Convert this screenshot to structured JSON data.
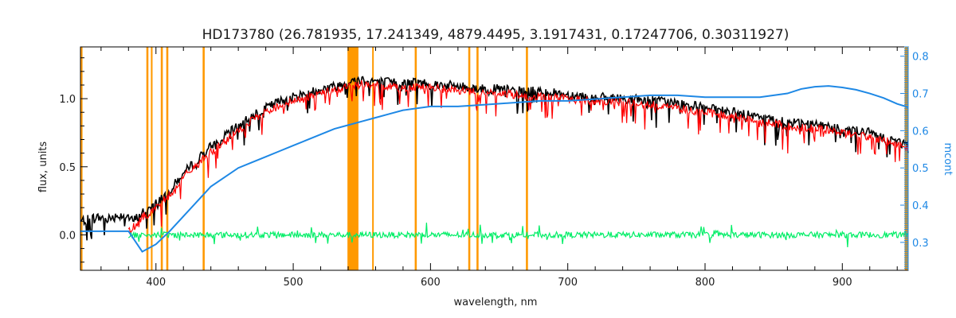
{
  "chart_data": {
    "type": "line",
    "title": "HD173780    (26.781935, 17.241349, 4879.4495, 3.1917431, 0.17247706, 0.30311927)",
    "xlabel": "wavelength, nm",
    "ylabel": "flux, units",
    "y2label": "mcont",
    "xlim": [
      345,
      948
    ],
    "ylim": [
      -0.26,
      1.38
    ],
    "y2lim": [
      0.225,
      0.825
    ],
    "x_ticks": [
      400,
      500,
      600,
      700,
      800,
      900
    ],
    "y_ticks": [
      0.0,
      0.5,
      1.0
    ],
    "y_tick_labels": [
      "0.0",
      "0.5",
      "1.0"
    ],
    "y2_ticks": [
      0.3,
      0.4,
      0.5,
      0.6,
      0.7,
      0.8
    ],
    "y2_tick_labels": [
      "0.3",
      "0.4",
      "0.5",
      "0.6",
      "0.7",
      "0.8"
    ],
    "grid": false,
    "colors": {
      "observed": "#000000",
      "model": "#ff0000",
      "residual": "#00ee66",
      "continuum": "#1e88e5",
      "mask": "#ff9900",
      "highlight": "#ffff00"
    },
    "masked_regions": [
      [
        345,
        346.5
      ],
      [
        393,
        394.5
      ],
      [
        396.3,
        397.5
      ],
      [
        403.5,
        405
      ],
      [
        407.5,
        409
      ],
      [
        434,
        435.5
      ],
      [
        539.5,
        547.5
      ],
      [
        557.5,
        558.5
      ],
      [
        588.5,
        590
      ],
      [
        627.5,
        629
      ],
      [
        633.5,
        635
      ],
      [
        669.5,
        671
      ],
      [
        945.5,
        948
      ]
    ],
    "series": [
      {
        "style": "observed",
        "x": [
          345,
          355,
          365,
          372,
          378,
          383,
          390,
          398,
          405,
          412,
          420,
          430,
          440,
          450,
          460,
          470,
          480,
          490,
          500,
          510,
          520,
          530,
          540,
          550,
          560,
          570,
          580,
          590,
          600,
          610,
          620,
          630,
          640,
          650,
          660,
          670,
          680,
          690,
          700,
          710,
          720,
          740,
          760,
          780,
          800,
          820,
          840,
          860,
          880,
          900,
          920,
          935,
          948
        ],
        "y": [
          0.1,
          0.13,
          0.12,
          0.14,
          0.15,
          0.1,
          0.16,
          0.22,
          0.28,
          0.35,
          0.45,
          0.55,
          0.65,
          0.72,
          0.8,
          0.88,
          0.93,
          0.98,
          1.01,
          1.04,
          1.07,
          1.09,
          1.12,
          1.14,
          1.13,
          1.12,
          1.11,
          1.12,
          1.11,
          1.1,
          1.09,
          1.08,
          1.07,
          1.07,
          1.06,
          1.05,
          1.06,
          1.04,
          1.03,
          1.02,
          1.01,
          1.0,
          0.99,
          0.97,
          0.93,
          0.9,
          0.86,
          0.83,
          0.81,
          0.78,
          0.75,
          0.7,
          0.66
        ]
      },
      {
        "style": "model",
        "x": [
          380,
          385,
          390,
          398,
          405,
          412,
          420,
          430,
          440,
          450,
          460,
          470,
          480,
          490,
          500,
          510,
          520,
          530,
          540,
          550,
          560,
          570,
          580,
          590,
          600,
          610,
          620,
          630,
          640,
          650,
          660,
          670,
          680,
          690,
          700,
          710,
          720,
          740,
          760,
          780,
          800,
          820,
          840,
          860,
          880,
          900,
          920,
          935,
          948
        ],
        "y": [
          0.03,
          0.07,
          0.13,
          0.18,
          0.25,
          0.32,
          0.42,
          0.52,
          0.61,
          0.68,
          0.76,
          0.84,
          0.9,
          0.95,
          0.98,
          1.01,
          1.04,
          1.06,
          1.09,
          1.11,
          1.1,
          1.09,
          1.08,
          1.09,
          1.08,
          1.07,
          1.06,
          1.05,
          1.04,
          1.04,
          1.03,
          1.02,
          1.02,
          1.01,
          1.0,
          0.99,
          0.98,
          0.97,
          0.96,
          0.93,
          0.9,
          0.87,
          0.83,
          0.8,
          0.78,
          0.75,
          0.72,
          0.68,
          0.64
        ]
      },
      {
        "style": "residual",
        "x": [
          380,
          948
        ],
        "y": [
          0.0,
          0.0
        ]
      },
      {
        "style": "continuum",
        "axis": "y2",
        "x": [
          345,
          380,
          390,
          400,
          410,
          420,
          430,
          440,
          450,
          460,
          470,
          480,
          490,
          500,
          510,
          520,
          530,
          540,
          550,
          560,
          570,
          580,
          590,
          600,
          620,
          640,
          660,
          680,
          700,
          720,
          740,
          760,
          780,
          800,
          820,
          840,
          860,
          870,
          880,
          890,
          900,
          910,
          920,
          930,
          940,
          948
        ],
        "y": [
          0.33,
          0.33,
          0.275,
          0.295,
          0.33,
          0.37,
          0.41,
          0.45,
          0.475,
          0.5,
          0.515,
          0.53,
          0.545,
          0.56,
          0.575,
          0.59,
          0.605,
          0.615,
          0.625,
          0.635,
          0.645,
          0.655,
          0.66,
          0.665,
          0.665,
          0.67,
          0.675,
          0.68,
          0.68,
          0.685,
          0.69,
          0.695,
          0.695,
          0.69,
          0.69,
          0.69,
          0.7,
          0.712,
          0.718,
          0.72,
          0.716,
          0.71,
          0.7,
          0.688,
          0.672,
          0.663
        ]
      }
    ]
  }
}
